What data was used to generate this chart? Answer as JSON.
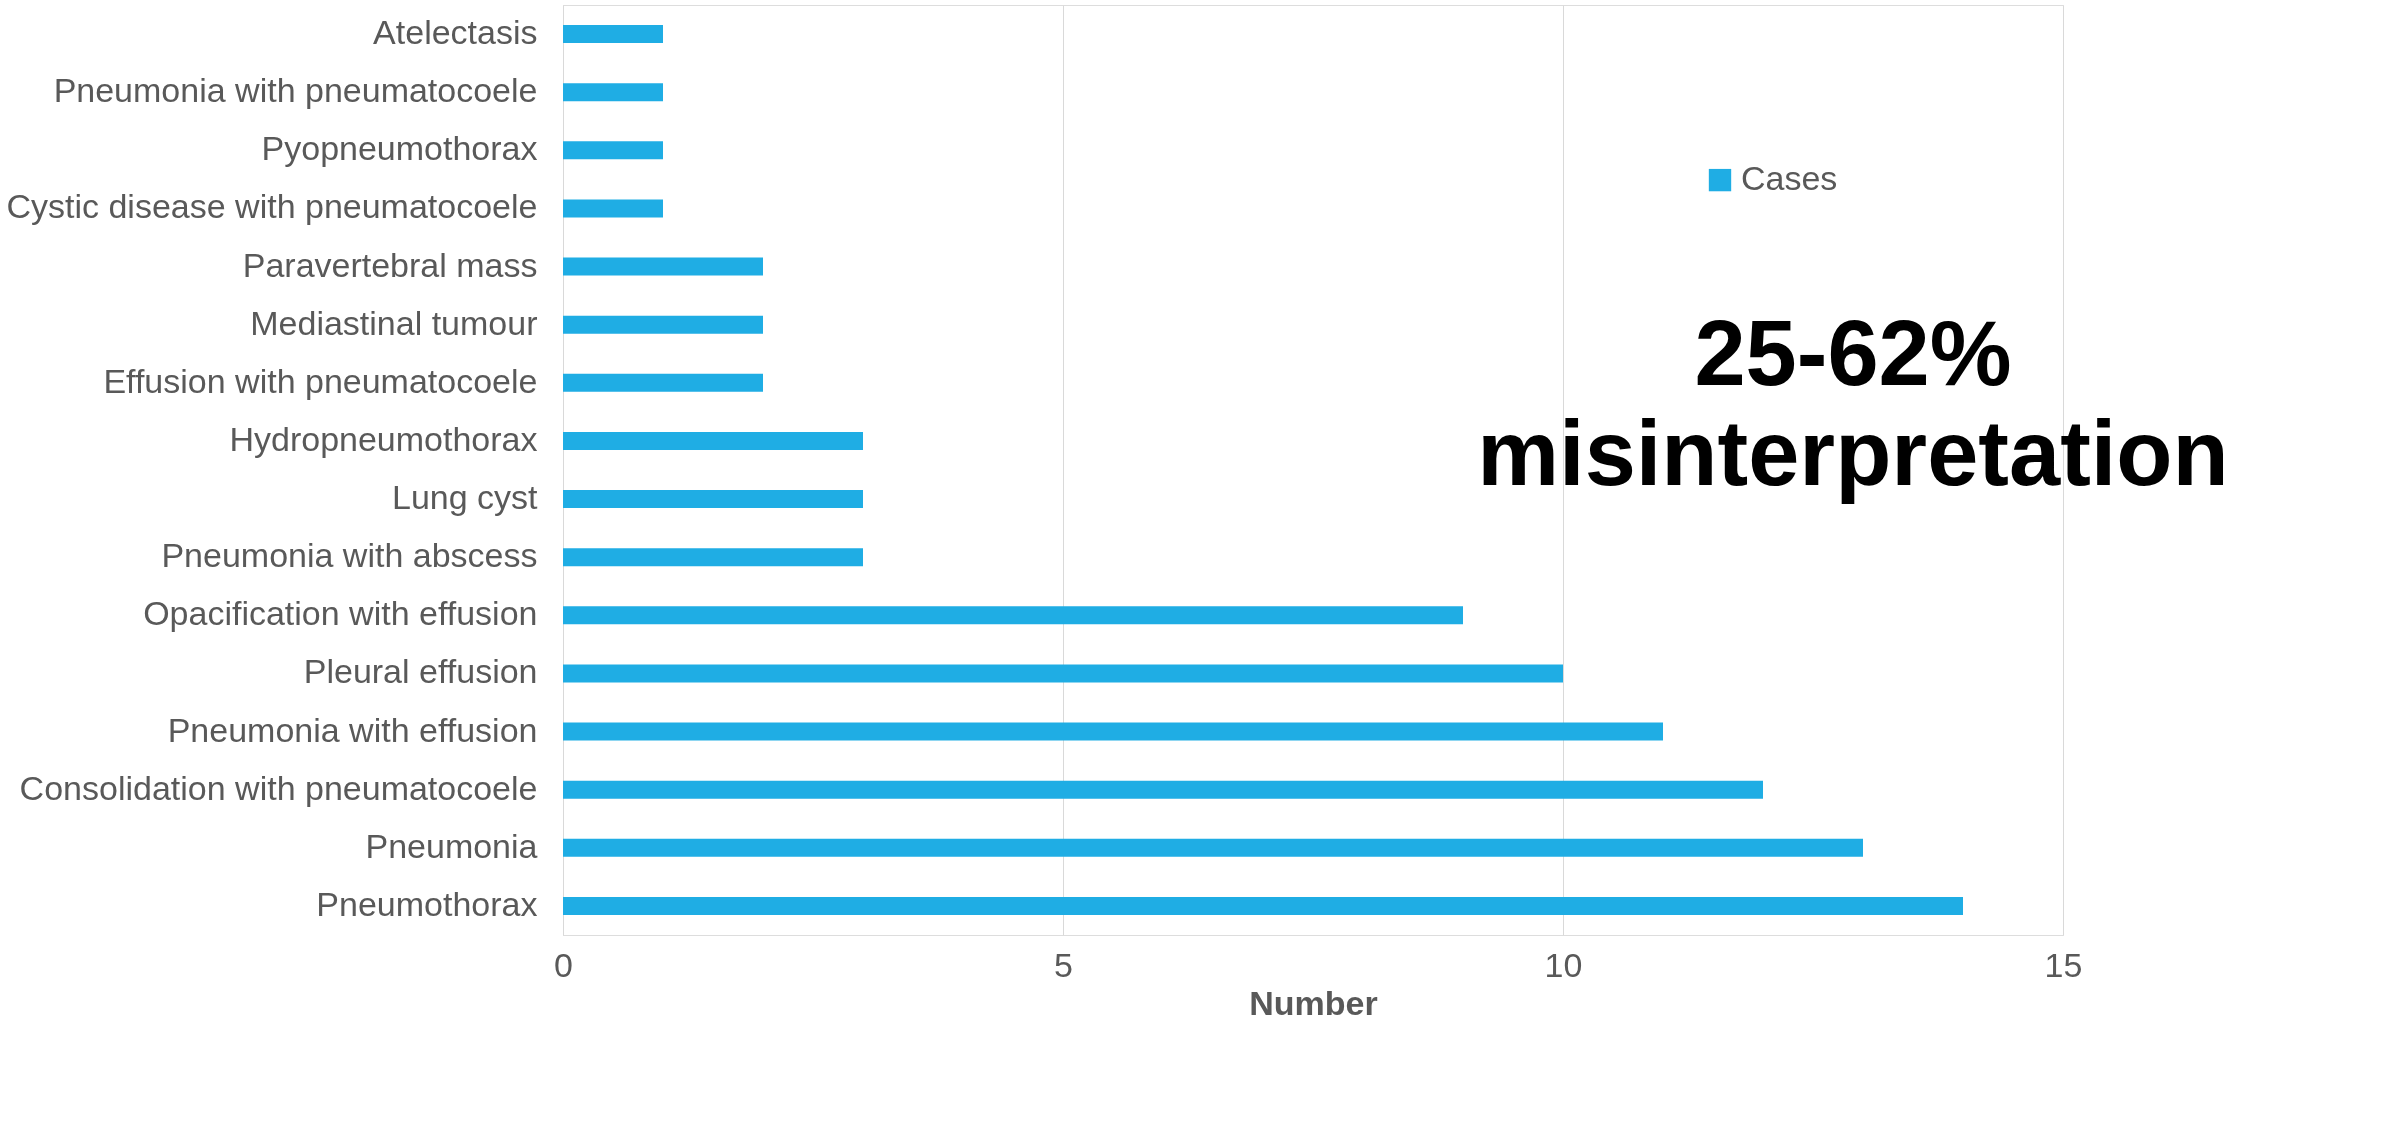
{
  "chart_data": {
    "type": "bar",
    "orientation": "horizontal",
    "xlabel": "Number",
    "categories": [
      "Atelectasis",
      "Pneumonia with pneumatocoele",
      "Pyopneumothorax",
      "Cystic disease with pneumatocoele",
      "Paravertebral mass",
      "Mediastinal tumour",
      "Effusion with pneumatocoele",
      "Hydropneumothorax",
      "Lung cyst",
      "Pneumonia with abscess",
      "Opacification with effusion",
      "Pleural effusion",
      "Pneumonia with effusion",
      "Consolidation with pneumatocoele",
      "Pneumonia",
      "Pneumothorax"
    ],
    "series": [
      {
        "name": "Cases",
        "color": "#1fade4",
        "values": [
          1,
          1,
          1,
          1,
          2,
          2,
          2,
          3,
          3,
          3,
          9,
          10,
          11,
          12,
          13,
          14
        ]
      }
    ],
    "xlim": [
      0,
      15
    ],
    "xticks": [
      0,
      5,
      10,
      15
    ],
    "grid": "x",
    "legend": "top right",
    "annotations": [
      "25-62% misinterpretation"
    ]
  }
}
